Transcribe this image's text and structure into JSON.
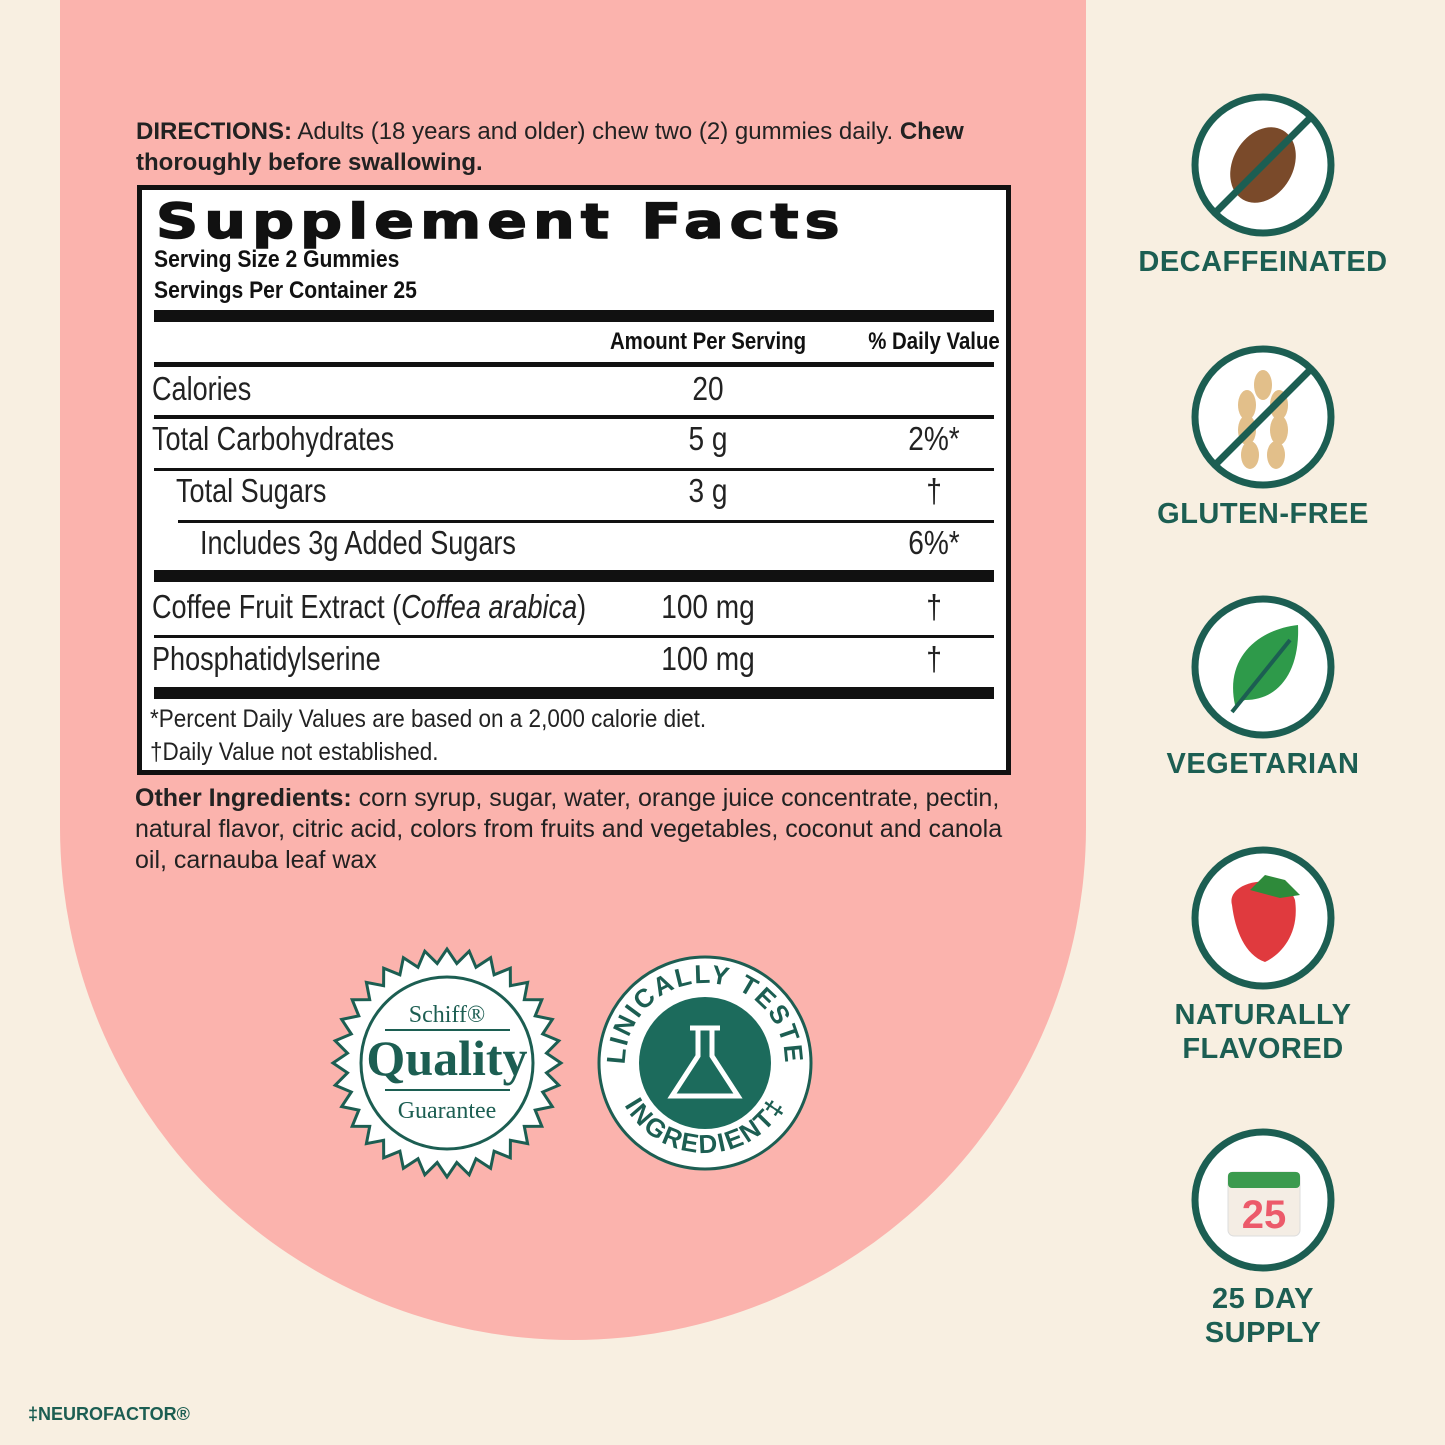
{
  "directions": {
    "label": "DIRECTIONS:",
    "text": "Adults (18 years and older) chew two (2) gummies daily.",
    "emphasis": "Chew thoroughly before swallowing."
  },
  "facts": {
    "title": "Supplement Facts",
    "serving_size": "Serving Size 2 Gummies",
    "servings_per_container": "Servings Per Container 25",
    "header": [
      "Amount Per Serving",
      "% Daily Value"
    ],
    "rows": [
      {
        "name": "Calories",
        "amount": "20"
      },
      {
        "name": "Total Carbohydrates",
        "amount": "5 g",
        "dv": "2%*"
      },
      {
        "name": "Total Sugars",
        "amount": "3 g",
        "dv": "†"
      },
      {
        "name": "Includes 3g Added Sugars",
        "dv": "6%*"
      },
      {
        "name_parts": [
          "Coffee Fruit Extract (",
          "Coffea arabica",
          ")"
        ],
        "amount": "100 mg",
        "dv": "†"
      },
      {
        "name": "Phosphatidylserine",
        "amount": "100 mg",
        "dv": "†"
      }
    ],
    "footnotes": [
      "*Percent Daily Values are based on a 2,000 calorie diet.",
      "†Daily Value not established."
    ]
  },
  "other_ingredients": {
    "label": "Other Ingredients:",
    "text": "corn syrup, sugar, water, orange juice concentrate, pectin, natural flavor, citric acid, colors from fruits and vegetables, coconut and canola oil, carnauba leaf wax"
  },
  "badges": {
    "quality": [
      "Schiff®",
      "Quality",
      "Guarantee"
    ],
    "clinical": [
      "CLINICALLY TESTED",
      "INGREDIENT‡"
    ]
  },
  "features": [
    {
      "lines": [
        "DECAFFEINATED"
      ]
    },
    {
      "lines": [
        "GLUTEN-FREE"
      ]
    },
    {
      "lines": [
        "VEGETARIAN"
      ]
    },
    {
      "lines": [
        "NATURALLY",
        "FLAVORED"
      ]
    },
    {
      "lines": [
        "25 DAY",
        "SUPPLY"
      ],
      "calendar": "25"
    }
  ],
  "footnote": "‡NEUROFACTOR®"
}
